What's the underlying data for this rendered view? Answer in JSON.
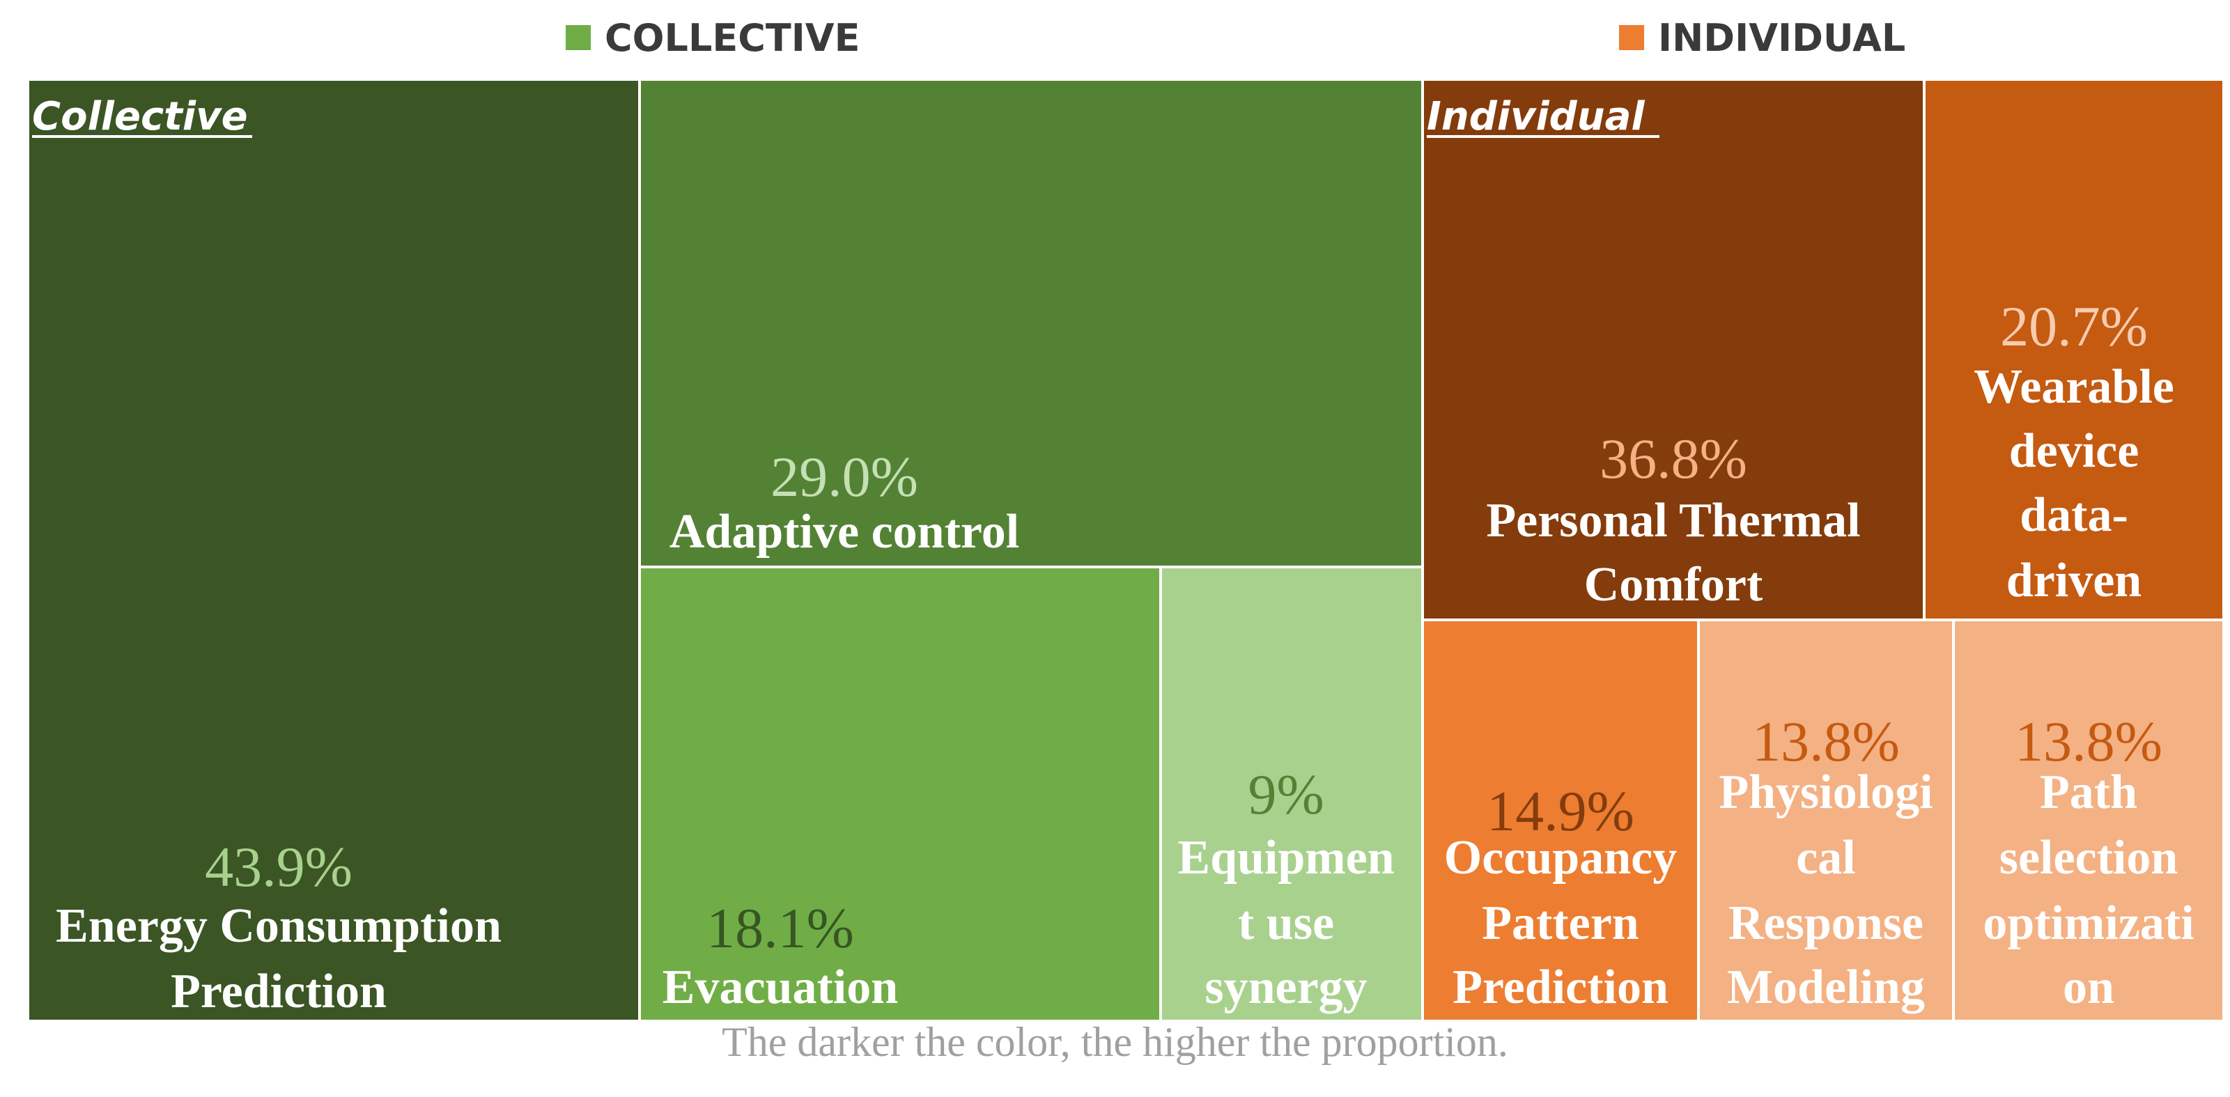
{
  "legend": [
    {
      "label": "COLLECTIVE",
      "color": "#70ad47"
    },
    {
      "label": "INDIVIDUAL",
      "color": "#ed7d31"
    }
  ],
  "caption": "The darker the color, the higher the proportion.",
  "chart_data": {
    "type": "treemap",
    "groups": [
      {
        "name": "Collective",
        "cells": [
          {
            "pct": "43.9%",
            "value": 43.9,
            "label": [
              "Energy Consumption",
              "Prediction"
            ],
            "color": "#3b5524",
            "text_color": "#a9d18e"
          },
          {
            "pct": "29.0%",
            "value": 29.0,
            "label": [
              "Adaptive control"
            ],
            "color": "#548235",
            "text_color": "#c5e0b4"
          },
          {
            "pct": "18.1%",
            "value": 18.1,
            "label": [
              "Evacuation"
            ],
            "color": "#70ad47",
            "text_color": "#375623"
          },
          {
            "pct": "9%",
            "value": 9,
            "label": [
              "Equipmen",
              "t use",
              "synergy"
            ],
            "color": "#a9d18e",
            "text_color": "#548235"
          }
        ]
      },
      {
        "name": "Individual",
        "cells": [
          {
            "pct": "36.8%",
            "value": 36.8,
            "label": [
              "Personal Thermal",
              "Comfort"
            ],
            "color": "#843c0c",
            "text_color": "#f4b183"
          },
          {
            "pct": "20.7%",
            "value": 20.7,
            "label": [
              "Wearable",
              "device",
              "data-",
              "driven"
            ],
            "color": "#c55a11",
            "text_color": "#f8cbad"
          },
          {
            "pct": "14.9%",
            "value": 14.9,
            "label": [
              "Occupancy",
              "Pattern",
              "Prediction"
            ],
            "color": "#ed7d31",
            "text_color": "#843c0c"
          },
          {
            "pct": "13.8%",
            "value": 13.8,
            "label": [
              "Physiologi",
              "cal",
              "Response",
              "Modeling"
            ],
            "color": "#f4b183",
            "text_color": "#c55a11"
          },
          {
            "pct": "13.8%",
            "value": 13.8,
            "label": [
              "Path",
              "selection",
              "optimizati",
              "on"
            ],
            "color": "#f4b183",
            "text_color": "#c55a11"
          }
        ]
      }
    ]
  }
}
